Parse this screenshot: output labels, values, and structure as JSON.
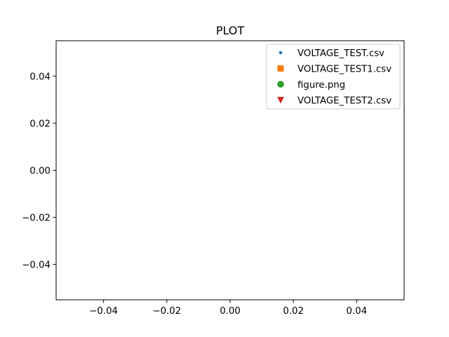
{
  "chart_data": {
    "type": "scatter",
    "title": "PLOT",
    "xlabel": "",
    "ylabel": "",
    "xlim": [
      -0.055,
      0.055
    ],
    "ylim": [
      -0.055,
      0.055
    ],
    "x_ticks": [
      -0.04,
      -0.02,
      0.0,
      0.02,
      0.04
    ],
    "x_tick_labels": [
      "−0.04",
      "−0.02",
      "0.00",
      "0.02",
      "0.04"
    ],
    "y_ticks": [
      -0.04,
      -0.02,
      0.0,
      0.02,
      0.04
    ],
    "y_tick_labels": [
      "−0.04",
      "−0.02",
      "0.00",
      "0.02",
      "0.04"
    ],
    "grid": false,
    "legend_position": "top-right",
    "series": [
      {
        "name": "VOLTAGE_TEST.csv",
        "marker": "point",
        "color": "#1f77b4",
        "x": [],
        "y": []
      },
      {
        "name": "VOLTAGE_TEST1.csv",
        "marker": "square",
        "color": "#ff7f0e",
        "x": [],
        "y": []
      },
      {
        "name": "figure.png",
        "marker": "circle",
        "color": "#2ca02c",
        "x": [],
        "y": []
      },
      {
        "name": "VOLTAGE_TEST2.csv",
        "marker": "triangle-down",
        "color": "#d62728",
        "x": [],
        "y": []
      }
    ]
  }
}
